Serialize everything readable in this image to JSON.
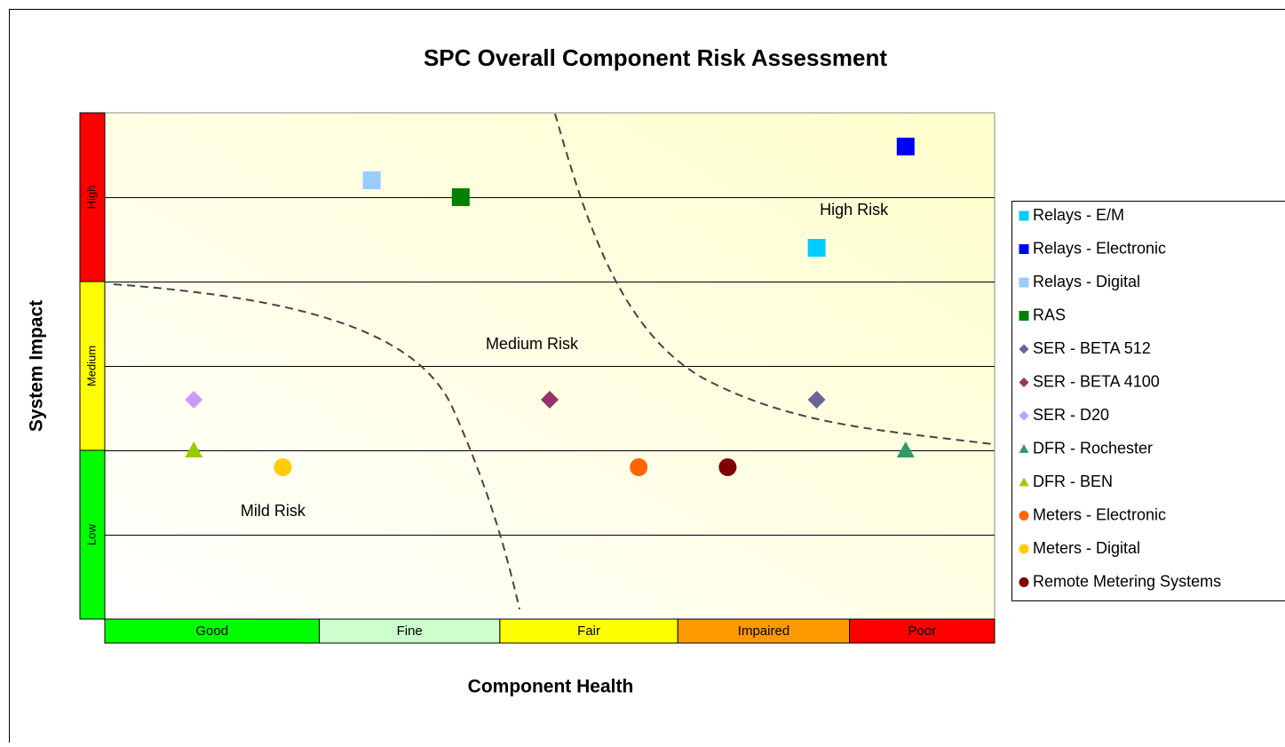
{
  "chart_data": {
    "type": "scatter",
    "title": "SPC Overall Component Risk Assessment",
    "x_label": "Component Health",
    "y_label": "System Impact",
    "xlim": [
      0,
      10
    ],
    "ylim": [
      0,
      6
    ],
    "ygrid": [
      1,
      2,
      3,
      4,
      5
    ],
    "x_bands": [
      {
        "label": "Good",
        "from": 0,
        "to": 2.41,
        "color": "#00ff00"
      },
      {
        "label": "Fine",
        "from": 2.41,
        "to": 4.44,
        "color": "#ccffcc"
      },
      {
        "label": "Fair",
        "from": 4.44,
        "to": 6.44,
        "color": "#ffff00"
      },
      {
        "label": "Impaired",
        "from": 6.44,
        "to": 8.37,
        "color": "#ff9900"
      },
      {
        "label": "Poor",
        "from": 8.37,
        "to": 10,
        "color": "#ff0000"
      }
    ],
    "y_bands": [
      {
        "label": "Low",
        "from": 0,
        "to": 2,
        "color": "#00ff00"
      },
      {
        "label": "Medium",
        "from": 2,
        "to": 4,
        "color": "#ffff00"
      },
      {
        "label": "High",
        "from": 4,
        "to": 6,
        "color": "#ff0000"
      }
    ],
    "annotations": [
      {
        "text": "High Risk",
        "x": 8.42,
        "y": 4.84
      },
      {
        "text": "Medium Risk",
        "x": 4.8,
        "y": 3.25
      },
      {
        "text": "Mild Risk",
        "x": 1.89,
        "y": 1.27
      }
    ],
    "series": [
      {
        "name": "Relays - E/M",
        "color": "#00ccff",
        "marker": "square",
        "x": [
          8
        ],
        "values": [
          4.4
        ]
      },
      {
        "name": "Relays - Electronic",
        "color": "#0000ff",
        "marker": "square",
        "x": [
          9
        ],
        "values": [
          5.6
        ]
      },
      {
        "name": "Relays - Digital",
        "color": "#99ccff",
        "marker": "square",
        "x": [
          3
        ],
        "values": [
          5.2
        ]
      },
      {
        "name": "RAS",
        "color": "#008000",
        "marker": "square",
        "x": [
          4
        ],
        "values": [
          5.0
        ]
      },
      {
        "name": "SER - BETA 512",
        "color": "#666699",
        "marker": "diamond",
        "x": [
          8
        ],
        "values": [
          2.6
        ]
      },
      {
        "name": "SER - BETA 4100",
        "color": "#993366",
        "marker": "diamond",
        "x": [
          5
        ],
        "values": [
          2.6
        ]
      },
      {
        "name": "SER - D20",
        "color": "#cc99ff",
        "marker": "diamond",
        "x": [
          1
        ],
        "values": [
          2.6
        ]
      },
      {
        "name": "DFR - Rochester",
        "color": "#339966",
        "marker": "triangle",
        "x": [
          9
        ],
        "values": [
          2.0
        ]
      },
      {
        "name": "DFR - BEN",
        "color": "#99cc00",
        "marker": "triangle",
        "x": [
          1
        ],
        "values": [
          2.0
        ]
      },
      {
        "name": "Meters - Electronic",
        "color": "#ff6600",
        "marker": "circle",
        "x": [
          6
        ],
        "values": [
          1.8
        ]
      },
      {
        "name": "Meters - Digital",
        "color": "#ffcc00",
        "marker": "circle",
        "x": [
          2
        ],
        "values": [
          1.8
        ]
      },
      {
        "name": "Remote Metering Systems",
        "color": "#800000",
        "marker": "circle",
        "x": [
          7
        ],
        "values": [
          1.8
        ]
      }
    ]
  }
}
